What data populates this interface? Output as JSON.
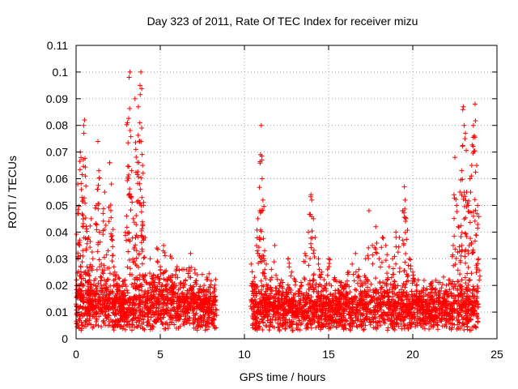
{
  "chart_data": {
    "type": "scatter",
    "title": "Day 323 of 2011, Rate Of TEC Index for receiver mizu",
    "xlabel": "GPS time / hours",
    "ylabel": "ROTI / TECUs",
    "xlim": [
      0,
      25
    ],
    "ylim": [
      0,
      0.11
    ],
    "xticks": [
      0,
      5,
      10,
      15,
      20,
      25
    ],
    "xtick_labels": [
      "0",
      "5",
      "10",
      "15",
      "20",
      "25"
    ],
    "yticks": [
      0,
      0.01,
      0.02,
      0.03,
      0.04,
      0.05,
      0.06,
      0.07,
      0.08,
      0.09,
      0.1,
      0.11
    ],
    "ytick_labels": [
      "0",
      "0.01",
      "0.02",
      "0.03",
      "0.04",
      "0.05",
      "0.06",
      "0.07",
      "0.08",
      "0.09",
      "0.1",
      "0.11"
    ],
    "grid": true,
    "grid_style": "dotted",
    "marker": "+",
    "marker_color": "#ff0000",
    "series": [
      {
        "points": [
          [
            0.05,
            0.012
          ],
          [
            0.1,
            0.058
          ],
          [
            0.15,
            0.047
          ],
          [
            0.2,
            0.035
          ],
          [
            0.25,
            0.07
          ],
          [
            0.3,
            0.024
          ],
          [
            0.35,
            0.053
          ],
          [
            0.4,
            0.031
          ],
          [
            0.45,
            0.08
          ],
          [
            0.5,
            0.082
          ],
          [
            0.55,
            0.061
          ],
          [
            0.6,
            0.042
          ],
          [
            0.65,
            0.027
          ],
          [
            0.7,
            0.018
          ],
          [
            0.75,
            0.038
          ],
          [
            0.8,
            0.022
          ],
          [
            0.9,
            0.045
          ],
          [
            1.0,
            0.03
          ],
          [
            1.1,
            0.016
          ],
          [
            1.2,
            0.05
          ],
          [
            1.3,
            0.074
          ],
          [
            1.35,
            0.063
          ],
          [
            1.4,
            0.04
          ],
          [
            1.5,
            0.028
          ],
          [
            1.6,
            0.047
          ],
          [
            1.7,
            0.055
          ],
          [
            1.8,
            0.019
          ],
          [
            1.9,
            0.033
          ],
          [
            2.0,
            0.066
          ],
          [
            2.1,
            0.058
          ],
          [
            2.2,
            0.041
          ],
          [
            2.3,
            0.025
          ],
          [
            2.4,
            0.015
          ],
          [
            2.5,
            0.02
          ],
          [
            2.6,
            0.012
          ],
          [
            2.7,
            0.017
          ],
          [
            2.8,
            0.014
          ],
          [
            2.9,
            0.022
          ],
          [
            3.0,
            0.046
          ],
          [
            3.05,
            0.081
          ],
          [
            3.1,
            0.06
          ],
          [
            3.15,
            0.098
          ],
          [
            3.2,
            0.1
          ],
          [
            3.3,
            0.063
          ],
          [
            3.4,
            0.045
          ],
          [
            3.5,
            0.09
          ],
          [
            3.55,
            0.071
          ],
          [
            3.6,
            0.033
          ],
          [
            3.7,
            0.087
          ],
          [
            3.75,
            0.074
          ],
          [
            3.8,
            0.095
          ],
          [
            3.85,
            0.1
          ],
          [
            3.9,
            0.079
          ],
          [
            3.95,
            0.065
          ],
          [
            4.0,
            0.05
          ],
          [
            4.1,
            0.038
          ],
          [
            4.2,
            0.021
          ],
          [
            4.4,
            0.03
          ],
          [
            4.6,
            0.024
          ],
          [
            4.8,
            0.034
          ],
          [
            5.0,
            0.027
          ],
          [
            5.2,
            0.035
          ],
          [
            5.4,
            0.022
          ],
          [
            5.6,
            0.031
          ],
          [
            5.8,
            0.019
          ],
          [
            6.0,
            0.027
          ],
          [
            6.2,
            0.021
          ],
          [
            6.4,
            0.026
          ],
          [
            6.6,
            0.018
          ],
          [
            6.8,
            0.032
          ],
          [
            7.0,
            0.017
          ],
          [
            7.2,
            0.024
          ],
          [
            7.4,
            0.015
          ],
          [
            7.6,
            0.02
          ],
          [
            7.8,
            0.012
          ],
          [
            8.0,
            0.016
          ],
          [
            8.2,
            0.019
          ],
          [
            8.3,
            0.011
          ],
          [
            10.4,
            0.028
          ],
          [
            10.5,
            0.02
          ],
          [
            10.6,
            0.023
          ],
          [
            10.7,
            0.01
          ],
          [
            10.8,
            0.045
          ],
          [
            10.9,
            0.038
          ],
          [
            10.95,
            0.069
          ],
          [
            11.0,
            0.08
          ],
          [
            11.05,
            0.06
          ],
          [
            11.1,
            0.052
          ],
          [
            11.2,
            0.033
          ],
          [
            11.3,
            0.028
          ],
          [
            11.4,
            0.02
          ],
          [
            11.5,
            0.015
          ],
          [
            11.6,
            0.026
          ],
          [
            11.8,
            0.035
          ],
          [
            12.0,
            0.018
          ],
          [
            12.2,
            0.022
          ],
          [
            12.4,
            0.016
          ],
          [
            12.6,
            0.03
          ],
          [
            12.8,
            0.025
          ],
          [
            13.0,
            0.022
          ],
          [
            13.2,
            0.017
          ],
          [
            13.4,
            0.02
          ],
          [
            13.6,
            0.032
          ],
          [
            13.8,
            0.04
          ],
          [
            13.95,
            0.054
          ],
          [
            14.0,
            0.052
          ],
          [
            14.1,
            0.045
          ],
          [
            14.2,
            0.038
          ],
          [
            14.4,
            0.03
          ],
          [
            14.6,
            0.025
          ],
          [
            14.8,
            0.02
          ],
          [
            15.0,
            0.03
          ],
          [
            15.2,
            0.015
          ],
          [
            15.4,
            0.022
          ],
          [
            15.6,
            0.018
          ],
          [
            15.8,
            0.013
          ],
          [
            16.0,
            0.02
          ],
          [
            16.2,
            0.025
          ],
          [
            16.4,
            0.028
          ],
          [
            16.6,
            0.032
          ],
          [
            16.8,
            0.026
          ],
          [
            17.0,
            0.02
          ],
          [
            17.2,
            0.03
          ],
          [
            17.4,
            0.048
          ],
          [
            17.6,
            0.035
          ],
          [
            17.8,
            0.042
          ],
          [
            18.0,
            0.03
          ],
          [
            18.2,
            0.038
          ],
          [
            18.4,
            0.035
          ],
          [
            18.6,
            0.027
          ],
          [
            18.8,
            0.03
          ],
          [
            19.0,
            0.04
          ],
          [
            19.2,
            0.038
          ],
          [
            19.4,
            0.048
          ],
          [
            19.5,
            0.057
          ],
          [
            19.55,
            0.052
          ],
          [
            19.6,
            0.045
          ],
          [
            19.8,
            0.03
          ],
          [
            20.0,
            0.025
          ],
          [
            20.2,
            0.02
          ],
          [
            20.4,
            0.015
          ],
          [
            20.6,
            0.018
          ],
          [
            20.8,
            0.012
          ],
          [
            21.0,
            0.016
          ],
          [
            21.2,
            0.014
          ],
          [
            21.4,
            0.015
          ],
          [
            21.6,
            0.018
          ],
          [
            21.8,
            0.015
          ],
          [
            22.0,
            0.02
          ],
          [
            22.2,
            0.022
          ],
          [
            22.4,
            0.035
          ],
          [
            22.5,
            0.068
          ],
          [
            22.6,
            0.05
          ],
          [
            22.7,
            0.042
          ],
          [
            22.8,
            0.055
          ],
          [
            22.9,
            0.063
          ],
          [
            23.0,
            0.087
          ],
          [
            23.05,
            0.08
          ],
          [
            23.1,
            0.075
          ],
          [
            23.2,
            0.055
          ],
          [
            23.3,
            0.05
          ],
          [
            23.4,
            0.06
          ],
          [
            23.5,
            0.065
          ],
          [
            23.6,
            0.08
          ],
          [
            23.65,
            0.076
          ],
          [
            23.7,
            0.088
          ],
          [
            23.8,
            0.065
          ],
          [
            23.85,
            0.05
          ],
          [
            23.9,
            0.03
          ]
        ],
        "density_bands": [
          {
            "x_range": [
              0,
              8.3
            ],
            "y_base": [
              0.003,
              0.015
            ],
            "spread": 0.012
          },
          {
            "x_range": [
              10.4,
              23.9
            ],
            "y_base": [
              0.003,
              0.014
            ],
            "spread": 0.01
          }
        ]
      }
    ]
  }
}
